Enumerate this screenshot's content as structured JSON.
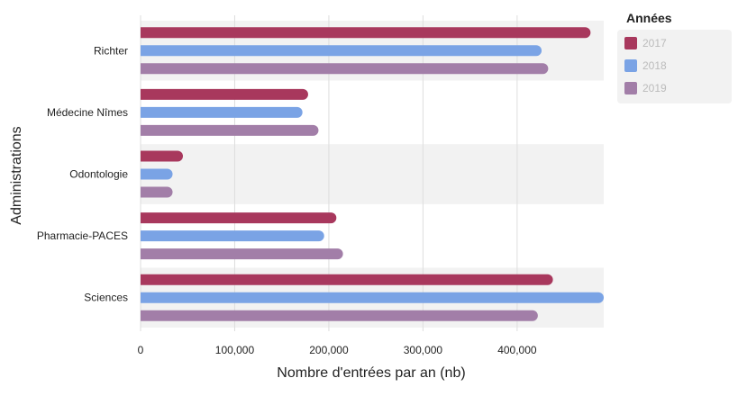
{
  "chart_data": {
    "type": "bar",
    "orientation": "horizontal",
    "categories": [
      "Richter",
      "Médecine Nîmes",
      "Odontologie",
      "Pharmacie-PACES",
      "Sciences"
    ],
    "series": [
      {
        "name": "2017",
        "color": "#a8385d",
        "values": [
          478000,
          178000,
          45000,
          208000,
          438000
        ]
      },
      {
        "name": "2018",
        "color": "#7aa3e5",
        "values": [
          426000,
          172000,
          34000,
          195000,
          492000
        ]
      },
      {
        "name": "2019",
        "color": "#a27ea8",
        "values": [
          433000,
          189000,
          34000,
          215000,
          422000
        ]
      }
    ],
    "xlabel": "Nombre d'entrées par an (nb)",
    "ylabel": "Administrations",
    "xlim": [
      0,
      492000
    ],
    "xticks": [
      0,
      100000,
      200000,
      300000,
      400000
    ],
    "xtick_labels": [
      "0",
      "100,000",
      "200,000",
      "300,000",
      "400,000"
    ],
    "grid": true,
    "legend": {
      "title": "Années",
      "position": "right"
    }
  }
}
